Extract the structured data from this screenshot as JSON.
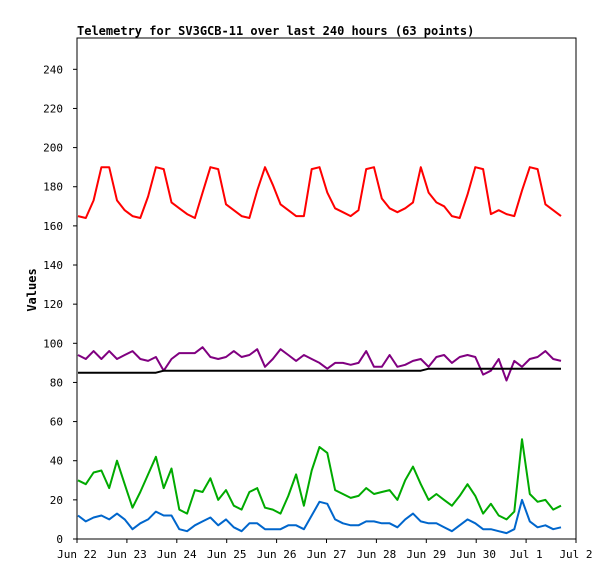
{
  "chart_data": {
    "type": "line",
    "title": "Telemetry for SV3GCB-11 over last 240 hours (63 points)",
    "xlabel": "",
    "ylabel": "Values",
    "xlim": [
      "Jun 22",
      "Jul 2"
    ],
    "ylim": [
      0,
      256
    ],
    "y_ticks": [
      0,
      20,
      40,
      60,
      80,
      100,
      120,
      140,
      160,
      180,
      200,
      220,
      240
    ],
    "x_ticks": [
      "Jun 22",
      "Jun 23",
      "Jun 24",
      "Jun 25",
      "Jun 26",
      "Jun 27",
      "Jun 28",
      "Jun 29",
      "Jun 30",
      "Jul 1",
      "Jul 2"
    ],
    "grid": false,
    "legend": "none",
    "series": [
      {
        "color": "#ff0000",
        "values": [
          165,
          164,
          173,
          190,
          190,
          173,
          168,
          165,
          164,
          175,
          190,
          189,
          172,
          169,
          166,
          164,
          177,
          190,
          189,
          171,
          168,
          165,
          164,
          178,
          190,
          181,
          171,
          168,
          165,
          165,
          189,
          190,
          177,
          169,
          167,
          165,
          168,
          189,
          190,
          174,
          169,
          167,
          169,
          172,
          190,
          177,
          172,
          170,
          165,
          164,
          176,
          190,
          189,
          166,
          168,
          166,
          165,
          178,
          190,
          189,
          171,
          168,
          165
        ]
      },
      {
        "color": "#800080",
        "values": [
          94,
          92,
          96,
          92,
          96,
          92,
          94,
          96,
          92,
          91,
          93,
          86,
          92,
          95,
          95,
          95,
          98,
          93,
          92,
          93,
          96,
          93,
          94,
          97,
          88,
          92,
          97,
          94,
          91,
          94,
          92,
          90,
          87,
          90,
          90,
          89,
          90,
          96,
          88,
          88,
          94,
          88,
          89,
          91,
          92,
          88,
          93,
          94,
          90,
          93,
          94,
          93,
          84,
          86,
          92,
          81,
          91,
          88,
          92,
          93,
          96,
          92,
          91
        ]
      },
      {
        "color": "#000000",
        "values": [
          85,
          85,
          85,
          85,
          85,
          85,
          85,
          85,
          85,
          85,
          85,
          86,
          86,
          86,
          86,
          86,
          86,
          86,
          86,
          86,
          86,
          86,
          86,
          86,
          86,
          86,
          86,
          86,
          86,
          86,
          86,
          86,
          86,
          86,
          86,
          86,
          86,
          86,
          86,
          86,
          86,
          86,
          86,
          86,
          86,
          87,
          87,
          87,
          87,
          87,
          87,
          87,
          87,
          87,
          87,
          87,
          87,
          87,
          87,
          87,
          87,
          87,
          87
        ]
      },
      {
        "color": "#00aa00",
        "values": [
          30,
          28,
          34,
          35,
          26,
          40,
          28,
          16,
          24,
          33,
          42,
          26,
          36,
          15,
          13,
          25,
          24,
          31,
          20,
          25,
          17,
          15,
          24,
          26,
          16,
          15,
          13,
          22,
          33,
          17,
          35,
          47,
          44,
          25,
          23,
          21,
          22,
          26,
          23,
          24,
          25,
          20,
          30,
          37,
          28,
          20,
          23,
          20,
          17,
          22,
          28,
          22,
          13,
          18,
          12,
          10,
          14,
          51,
          23,
          19,
          20,
          15,
          17
        ]
      },
      {
        "color": "#0066cc",
        "values": [
          12,
          9,
          11,
          12,
          10,
          13,
          10,
          5,
          8,
          10,
          14,
          12,
          12,
          5,
          4,
          7,
          9,
          11,
          7,
          10,
          6,
          4,
          8,
          8,
          5,
          5,
          5,
          7,
          7,
          5,
          12,
          19,
          18,
          10,
          8,
          7,
          7,
          9,
          9,
          8,
          8,
          6,
          10,
          13,
          9,
          8,
          8,
          6,
          4,
          7,
          10,
          8,
          5,
          5,
          4,
          3,
          5,
          20,
          9,
          6,
          7,
          5,
          6
        ]
      }
    ]
  }
}
